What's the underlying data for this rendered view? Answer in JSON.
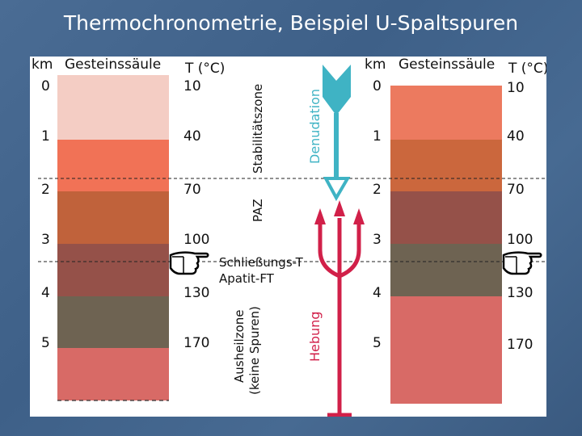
{
  "title": "Thermochronometrie, Beispiel U-Spaltspuren",
  "headers": {
    "km": "km",
    "column": "Gesteinssäule",
    "temp": "T (°C)"
  },
  "depth_labels": [
    "0",
    "1",
    "2",
    "3",
    "4",
    "5"
  ],
  "temp_labels": [
    "10",
    "40",
    "70",
    "100",
    "130",
    "170"
  ],
  "left_colors": [
    "#f4cdc4",
    "#f17256",
    "#c0623b",
    "#955149",
    "#6e6352",
    "#d86a66"
  ],
  "right_colors": [
    "#ec7a5f",
    "#cb673d",
    "#955149",
    "#6e6352",
    "#d86a66",
    "#d86a66"
  ],
  "zones": {
    "stability": "Stabilitätszone",
    "paz": "PAZ",
    "closure_line1": "Schließungs-T",
    "closure_line2": "Apatit-FT",
    "annealing_line1": "Ausheilzone",
    "annealing_line2": "(keine Spuren)"
  },
  "processes": {
    "denudation": "Denudation",
    "uplift": "Hebung",
    "denudation_color": "#3fb3c4",
    "uplift_color": "#d12049"
  },
  "icons": [
    "pointing-hand-icon",
    "denudation-arrow-icon",
    "uplift-trident-icon"
  ]
}
